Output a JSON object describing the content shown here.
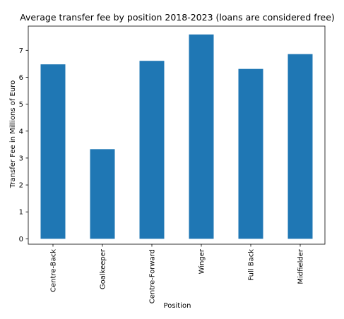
{
  "chart_data": {
    "type": "bar",
    "title": "Average transfer fee by position 2018-2023 (loans are considered free)",
    "xlabel": "Position",
    "ylabel": "Transfer Fee in Millions of Euro",
    "categories": [
      "Centre-Back",
      "Goalkeeper",
      "Centre-Forward",
      "Winger",
      "Full Back",
      "Midfielder"
    ],
    "values": [
      6.48,
      3.33,
      6.61,
      7.59,
      6.31,
      6.86
    ],
    "ylim": [
      -0.2,
      7.9
    ],
    "yticks": [
      "0",
      "1",
      "2",
      "3",
      "4",
      "5",
      "6",
      "7"
    ],
    "bar_color": "#1f77b4",
    "grid": false,
    "legend": "none"
  }
}
